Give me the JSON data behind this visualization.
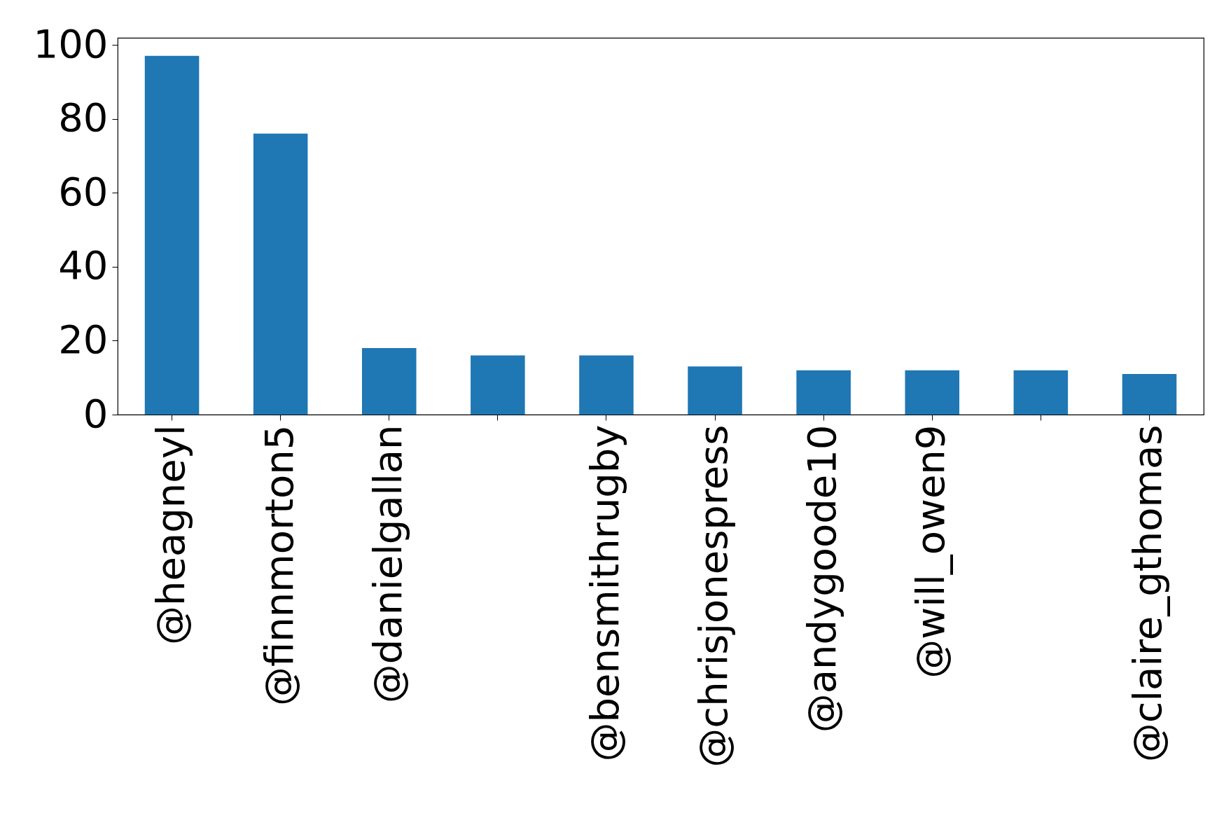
{
  "chart_data": {
    "type": "bar",
    "categories": [
      "@heagneyl",
      "@finnmorton5",
      "@danielgallan",
      null,
      "@bensmithrugby",
      "@chrisjonespress",
      "@andygoode10",
      "@will_owen9",
      null,
      "@claire_gthomas"
    ],
    "values": [
      97,
      76,
      18,
      16,
      16,
      13,
      12,
      12,
      12,
      11
    ],
    "color": "#1f77b4",
    "ylim": [
      0,
      101.9
    ],
    "yticks": [
      0,
      20,
      40,
      60,
      80,
      100
    ],
    "grid": false
  }
}
